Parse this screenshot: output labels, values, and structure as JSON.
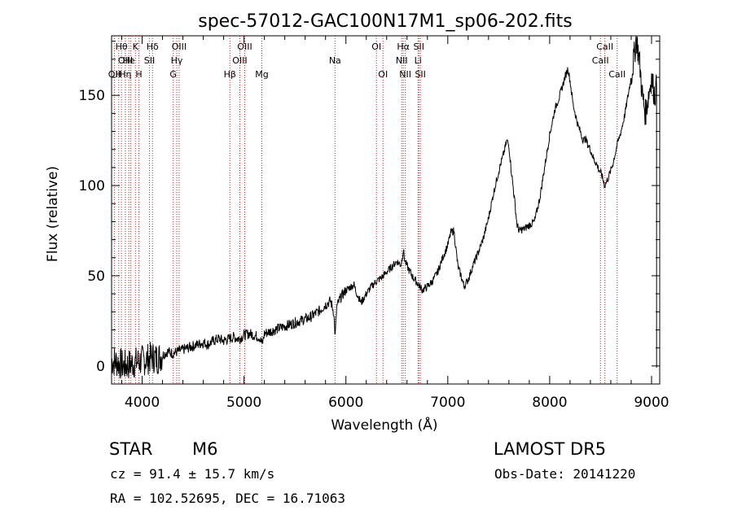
{
  "chart_data": {
    "type": "line",
    "title": "spec-57012-GAC100N17M1_sp06-202.fits",
    "xlabel": "Wavelength (Å)",
    "ylabel": "Flux (relative)",
    "xlim": [
      3700,
      9080
    ],
    "ylim": [
      -10,
      183
    ],
    "xticks": [
      4000,
      5000,
      6000,
      7000,
      8000,
      9000
    ],
    "yticks": [
      0,
      50,
      100,
      150
    ],
    "grid": false,
    "line_color": "#000000",
    "marker_color": "#cc2222",
    "series": [
      {
        "x": [
          3700,
          3760,
          3820,
          3880,
          3940,
          4000,
          4060,
          4100,
          4150,
          4200,
          4250,
          4300,
          4350,
          4400,
          4450,
          4500,
          4550,
          4600,
          4650,
          4700,
          4750,
          4800,
          4850,
          4900,
          4950,
          5000,
          5050,
          5100,
          5150,
          5180,
          5200,
          5250,
          5300,
          5350,
          5400,
          5450,
          5500,
          5550,
          5600,
          5650,
          5700,
          5750,
          5800,
          5850,
          5880,
          5895,
          5910,
          5950,
          6000,
          6050,
          6080,
          6100,
          6150,
          6200,
          6250,
          6300,
          6350,
          6400,
          6450,
          6500,
          6540,
          6563,
          6580,
          6620,
          6660,
          6700,
          6750,
          6800,
          6850,
          6900,
          6950,
          7000,
          7030,
          7060,
          7080,
          7100,
          7130,
          7160,
          7200,
          7250,
          7300,
          7350,
          7400,
          7450,
          7500,
          7550,
          7580,
          7600,
          7620,
          7650,
          7680,
          7700,
          7750,
          7800,
          7850,
          7900,
          7950,
          8000,
          8050,
          8100,
          8150,
          8180,
          8200,
          8230,
          8250,
          8280,
          8300,
          8330,
          8350,
          8380,
          8400,
          8430,
          8460,
          8490,
          8510,
          8540,
          8580,
          8620,
          8660,
          8700,
          8740,
          8770,
          8800,
          8830,
          8850,
          8880,
          8910,
          8940,
          8970,
          9000,
          9030,
          9050
        ],
        "y": [
          3,
          2,
          0,
          1,
          2,
          3,
          4,
          5,
          4,
          6,
          8,
          7,
          8,
          9,
          10,
          11,
          12,
          13,
          12,
          14,
          15,
          14,
          15,
          16,
          15,
          17,
          18,
          17,
          16,
          12,
          18,
          19,
          20,
          21,
          22,
          23,
          24,
          25,
          26,
          27,
          29,
          31,
          34,
          36,
          30,
          16,
          33,
          38,
          42,
          44,
          45,
          41,
          35,
          40,
          44,
          47,
          49,
          52,
          55,
          58,
          56,
          64,
          58,
          53,
          49,
          46,
          42,
          44,
          47,
          52,
          60,
          67,
          74,
          75,
          65,
          55,
          50,
          44,
          48,
          56,
          63,
          71,
          82,
          96,
          108,
          118,
          125,
          122,
          110,
          95,
          78,
          75,
          76,
          78,
          80,
          92,
          110,
          128,
          142,
          150,
          160,
          165,
          158,
          145,
          140,
          133,
          130,
          125,
          126,
          122,
          120,
          115,
          112,
          108,
          106,
          100,
          105,
          112,
          122,
          130,
          140,
          150,
          160,
          172,
          182,
          170,
          150,
          140,
          150,
          160,
          150,
          155
        ]
      }
    ],
    "line_markers": [
      {
        "wl": 3727,
        "row": 2,
        "label": "OII"
      },
      {
        "wl": 3770,
        "row": 2,
        "label": "H"
      },
      {
        "wl": 3797,
        "row": 0,
        "label": "Hθ"
      },
      {
        "wl": 3836,
        "row": 1,
        "label": "OIII"
      },
      {
        "wl": 3835,
        "row": 2,
        "label": "Hη"
      },
      {
        "wl": 3869,
        "row": 1,
        "label": "He"
      },
      {
        "wl": 3889,
        "row": 2,
        "label": ""
      },
      {
        "wl": 3934,
        "row": 0,
        "label": "K"
      },
      {
        "wl": 3968,
        "row": 2,
        "label": "H"
      },
      {
        "wl": 4072,
        "row": 1,
        "label": "SII"
      },
      {
        "wl": 4102,
        "row": 0,
        "label": "Hδ"
      },
      {
        "wl": 4305,
        "row": 2,
        "label": "G"
      },
      {
        "wl": 4340,
        "row": 1,
        "label": "Hγ"
      },
      {
        "wl": 4363,
        "row": 0,
        "label": "OIII"
      },
      {
        "wl": 4861,
        "row": 2,
        "label": "Hβ"
      },
      {
        "wl": 4959,
        "row": 1,
        "label": "OIII"
      },
      {
        "wl": 5007,
        "row": 0,
        "label": "OIII"
      },
      {
        "wl": 5175,
        "row": 2,
        "label": "Mg"
      },
      {
        "wl": 5893,
        "row": 1,
        "label": "Na"
      },
      {
        "wl": 6300,
        "row": 0,
        "label": "OI"
      },
      {
        "wl": 6364,
        "row": 2,
        "label": "OI"
      },
      {
        "wl": 6548,
        "row": 1,
        "label": "NII"
      },
      {
        "wl": 6563,
        "row": 0,
        "label": "Hα"
      },
      {
        "wl": 6583,
        "row": 2,
        "label": "NII"
      },
      {
        "wl": 6708,
        "row": 1,
        "label": "Li"
      },
      {
        "wl": 6716,
        "row": 0,
        "label": "SII"
      },
      {
        "wl": 6731,
        "row": 2,
        "label": "SII"
      },
      {
        "wl": 8498,
        "row": 1,
        "label": "CaII"
      },
      {
        "wl": 8542,
        "row": 0,
        "label": "CaII"
      },
      {
        "wl": 8662,
        "row": 2,
        "label": "CaII"
      }
    ]
  },
  "info": {
    "class_label": "STAR",
    "subclass": "M6",
    "survey": "LAMOST DR5",
    "redshift": "cz = 91.4 ± 15.7 km/s",
    "obs_date": "Obs-Date: 20141220",
    "coords": "RA = 102.52695, DEC =  16.71063"
  }
}
